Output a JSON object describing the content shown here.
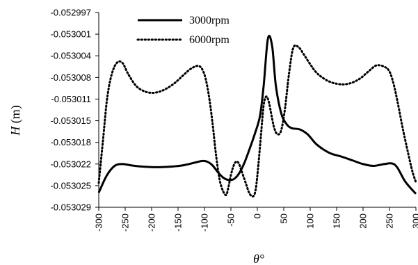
{
  "chart_data": {
    "type": "line",
    "title": "",
    "xlabel": "θ°",
    "ylabel_italic": "H",
    "ylabel_unit": "(m)",
    "xlim": [
      -300,
      300
    ],
    "ylim": [
      -0.053029,
      -0.052997
    ],
    "x_ticks": [
      -300,
      -250,
      -200,
      -150,
      -100,
      -50,
      0,
      50,
      100,
      150,
      200,
      250,
      300
    ],
    "x_tick_labels": [
      "-300",
      "-250",
      "-200",
      "-150",
      "-100",
      "-50",
      "0",
      "50",
      "100",
      "150",
      "200",
      "250",
      "300"
    ],
    "y_ticks": [
      -0.052997,
      -0.053001,
      -0.053004,
      -0.053008,
      -0.053011,
      -0.053015,
      -0.053018,
      -0.053022,
      -0.053025,
      -0.053029
    ],
    "y_tick_labels": [
      "-0.052997",
      "-0.053001",
      "-0.053004",
      "-0.053008",
      "-0.053011",
      "-0.053015",
      "-0.053018",
      "-0.053022",
      "-0.053025",
      "-0.053029"
    ],
    "legend_position": "top-left",
    "grid": false,
    "series": [
      {
        "name": "3000rpm",
        "style": "solid",
        "color": "#000000",
        "x": [
          -300,
          -285,
          -270,
          -255,
          -240,
          -220,
          -200,
          -180,
          -160,
          -140,
          -120,
          -105,
          -95,
          -85,
          -75,
          -65,
          -55,
          -45,
          -35,
          -25,
          -15,
          -5,
          5,
          12,
          20,
          28,
          35,
          45,
          55,
          65,
          80,
          95,
          110,
          125,
          140,
          160,
          180,
          200,
          220,
          240,
          255,
          265,
          280,
          300
        ],
        "y": [
          -0.0530266,
          -0.0530238,
          -0.0530222,
          -0.0530219,
          -0.0530221,
          -0.0530223,
          -0.0530224,
          -0.0530224,
          -0.0530223,
          -0.0530221,
          -0.0530217,
          -0.0530214,
          -0.0530215,
          -0.0530221,
          -0.0530232,
          -0.0530241,
          -0.0530245,
          -0.0530244,
          -0.0530235,
          -0.0530218,
          -0.0530195,
          -0.053017,
          -0.053014,
          -0.053009,
          -0.0530013,
          -0.0530025,
          -0.053009,
          -0.0530135,
          -0.0530153,
          -0.053016,
          -0.0530162,
          -0.053017,
          -0.0530185,
          -0.0530195,
          -0.0530202,
          -0.0530207,
          -0.0530213,
          -0.0530219,
          -0.0530222,
          -0.0530219,
          -0.0530218,
          -0.0530225,
          -0.0530248,
          -0.0530268
        ]
      },
      {
        "name": "6000rpm",
        "style": "dotted",
        "color": "#000000",
        "x": [
          -300,
          -292,
          -284,
          -275,
          -265,
          -255,
          -245,
          -230,
          -215,
          -200,
          -185,
          -170,
          -155,
          -140,
          -125,
          -110,
          -100,
          -92,
          -85,
          -78,
          -70,
          -60,
          -55,
          -50,
          -45,
          -40,
          -35,
          -30,
          -22,
          -15,
          -8,
          -3,
          2,
          7,
          12,
          17,
          22,
          27,
          32,
          38,
          45,
          52,
          60,
          68,
          78,
          88,
          100,
          110,
          120,
          135,
          150,
          165,
          180,
          195,
          210,
          225,
          240,
          250,
          258,
          266,
          275,
          285,
          293,
          300
        ],
        "y": [
          -0.053025,
          -0.053018,
          -0.053011,
          -0.053007,
          -0.0530052,
          -0.0530053,
          -0.053007,
          -0.053009,
          -0.0530099,
          -0.0530102,
          -0.05301,
          -0.0530094,
          -0.0530085,
          -0.0530073,
          -0.0530062,
          -0.0530058,
          -0.0530072,
          -0.0530105,
          -0.053015,
          -0.0530205,
          -0.053025,
          -0.053027,
          -0.0530258,
          -0.0530237,
          -0.0530222,
          -0.0530215,
          -0.0530218,
          -0.053023,
          -0.053025,
          -0.0530267,
          -0.0530272,
          -0.053026,
          -0.053022,
          -0.053017,
          -0.0530122,
          -0.0530108,
          -0.0530118,
          -0.053014,
          -0.053016,
          -0.053017,
          -0.0530164,
          -0.053013,
          -0.053007,
          -0.0530028,
          -0.0530027,
          -0.0530039,
          -0.0530055,
          -0.0530067,
          -0.0530075,
          -0.0530083,
          -0.0530087,
          -0.0530088,
          -0.0530085,
          -0.0530078,
          -0.0530067,
          -0.0530057,
          -0.0530059,
          -0.0530067,
          -0.0530088,
          -0.053012,
          -0.053016,
          -0.05302,
          -0.053023,
          -0.0530249
        ]
      }
    ]
  }
}
